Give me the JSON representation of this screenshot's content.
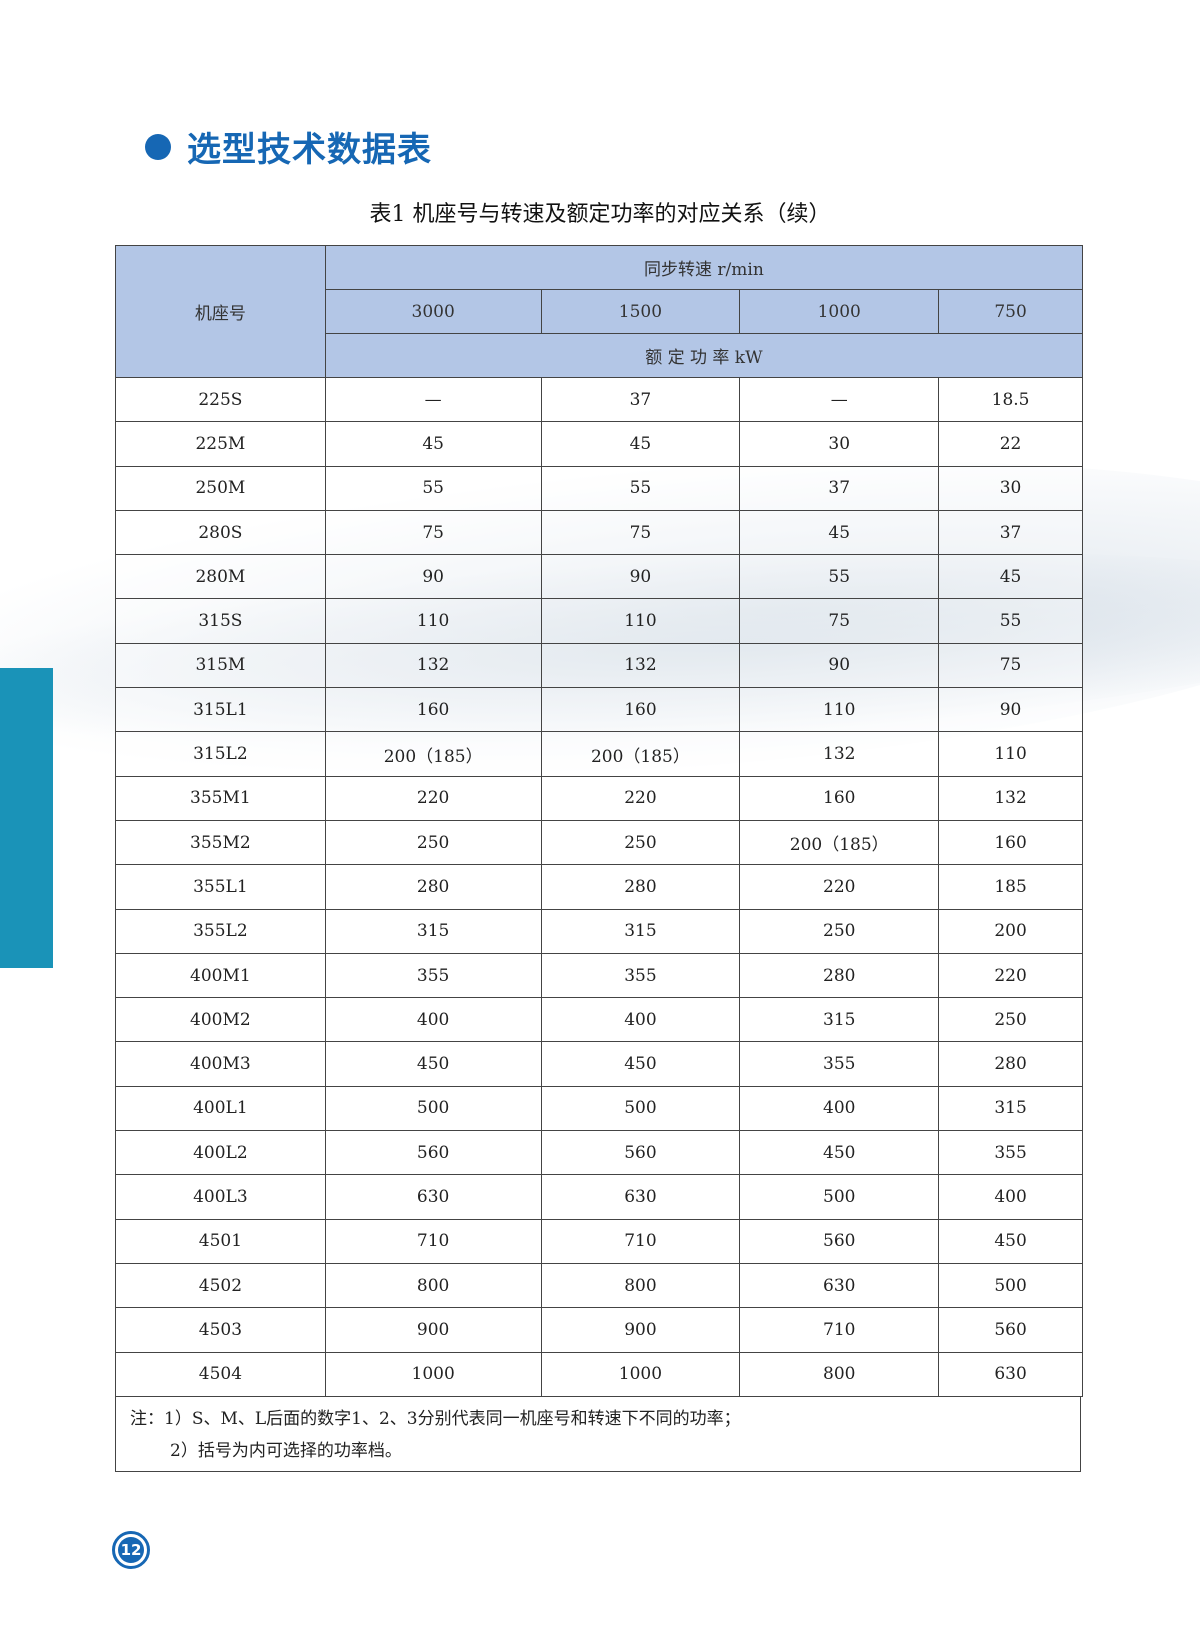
{
  "section_title": "选型技术数据表",
  "caption": "表1 机座号与转速及额定功率的对应关系（续）",
  "table": {
    "frame_header": "机座号",
    "speed_header": "同步转速 r/min",
    "speeds": [
      "3000",
      "1500",
      "1000",
      "750"
    ],
    "power_header": "额 定 功 率 kW",
    "rows": [
      [
        "225S",
        "—",
        "37",
        "—",
        "18.5"
      ],
      [
        "225M",
        "45",
        "45",
        "30",
        "22"
      ],
      [
        "250M",
        "55",
        "55",
        "37",
        "30"
      ],
      [
        "280S",
        "75",
        "75",
        "45",
        "37"
      ],
      [
        "280M",
        "90",
        "90",
        "55",
        "45"
      ],
      [
        "315S",
        "110",
        "110",
        "75",
        "55"
      ],
      [
        "315M",
        "132",
        "132",
        "90",
        "75"
      ],
      [
        "315L1",
        "160",
        "160",
        "110",
        "90"
      ],
      [
        "315L2",
        "200（185）",
        "200（185）",
        "132",
        "110"
      ],
      [
        "355M1",
        "220",
        "220",
        "160",
        "132"
      ],
      [
        "355M2",
        "250",
        "250",
        "200（185）",
        "160"
      ],
      [
        "355L1",
        "280",
        "280",
        "220",
        "185"
      ],
      [
        "355L2",
        "315",
        "315",
        "250",
        "200"
      ],
      [
        "400M1",
        "355",
        "355",
        "280",
        "220"
      ],
      [
        "400M2",
        "400",
        "400",
        "315",
        "250"
      ],
      [
        "400M3",
        "450",
        "450",
        "355",
        "280"
      ],
      [
        "400L1",
        "500",
        "500",
        "400",
        "315"
      ],
      [
        "400L2",
        "560",
        "560",
        "450",
        "355"
      ],
      [
        "400L3",
        "630",
        "630",
        "500",
        "400"
      ],
      [
        "4501",
        "710",
        "710",
        "560",
        "450"
      ],
      [
        "4502",
        "800",
        "800",
        "630",
        "500"
      ],
      [
        "4503",
        "900",
        "900",
        "710",
        "560"
      ],
      [
        "4504",
        "1000",
        "1000",
        "800",
        "630"
      ]
    ]
  },
  "notes": [
    "注：1）S、M、L后面的数字1、2、3分别代表同一机座号和转速下不同的功率；",
    "2）括号为内可选择的功率档。"
  ],
  "page_number": "12",
  "colors": {
    "brand_blue": "#1667b4",
    "header_fill": "#b3c6e6",
    "side_bar": "#1a93b8"
  }
}
